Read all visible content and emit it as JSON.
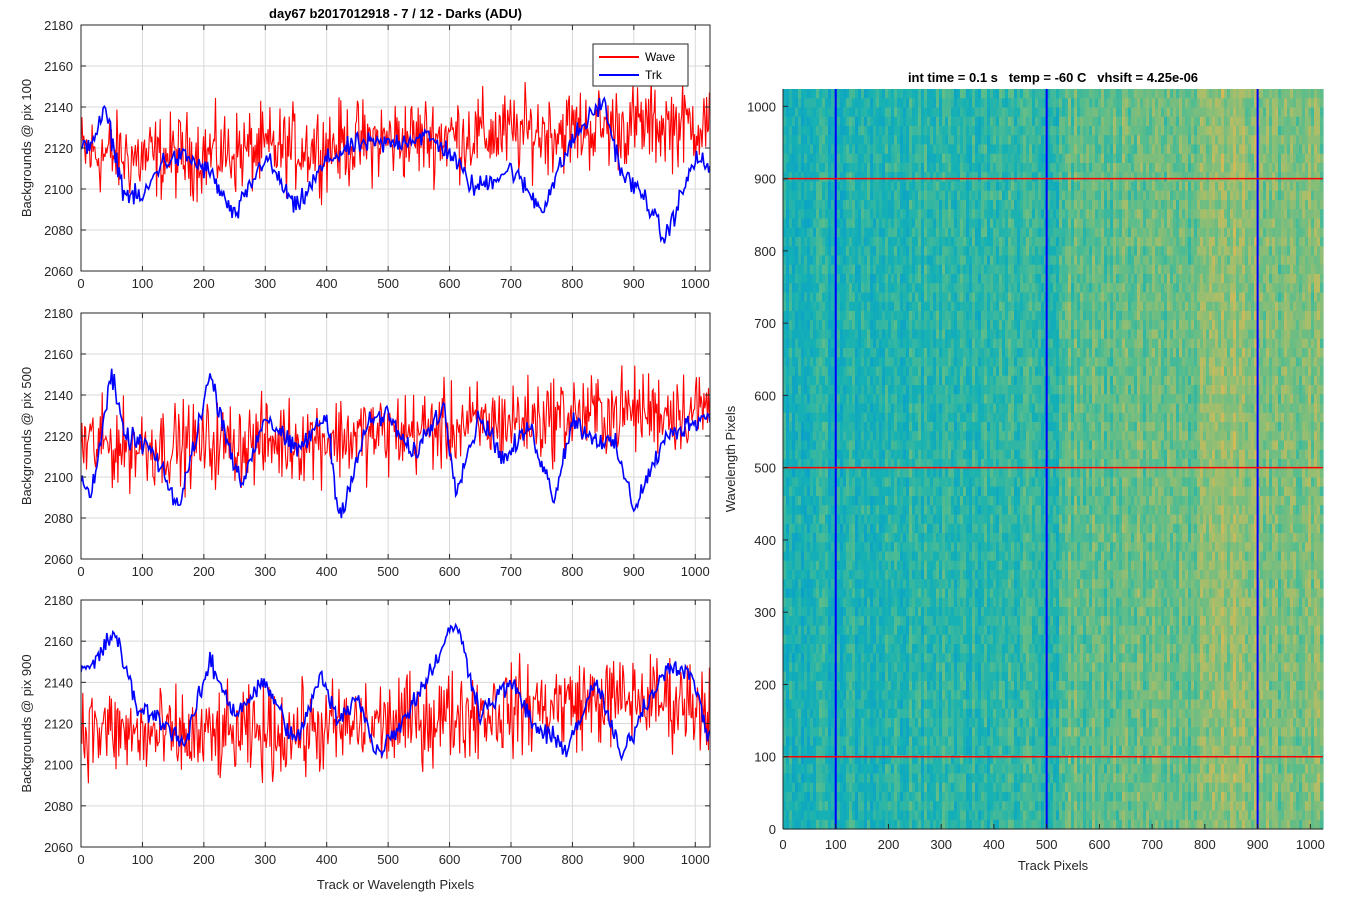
{
  "figure": {
    "colors": {
      "wave": "#ff0000",
      "trk": "#0000ff",
      "grid": "#d9d9d9",
      "axis": "#262626"
    }
  },
  "chart_data": [
    {
      "type": "line",
      "title": "day67 b2017012918 - 7 / 12 - Darks (ADU)",
      "xlabel": "",
      "ylabel": "Backgrounds @ pix 100",
      "xlim": [
        0,
        1024
      ],
      "ylim": [
        2060,
        2180
      ],
      "xticks": [
        0,
        100,
        200,
        300,
        400,
        500,
        600,
        700,
        800,
        900,
        1000
      ],
      "yticks": [
        2060,
        2080,
        2100,
        2120,
        2140,
        2160,
        2180
      ],
      "grid": true,
      "legend_position": "top-right",
      "series": [
        {
          "name": "Wave",
          "color": "#ff0000",
          "x": [
            0,
            100,
            200,
            300,
            400,
            500,
            600,
            700,
            800,
            900,
            1024
          ],
          "mean": [
            2118,
            2115,
            2117,
            2119,
            2121,
            2124,
            2126,
            2127,
            2129,
            2131,
            2132
          ],
          "noise": 14
        },
        {
          "name": "Trk",
          "color": "#0000ff",
          "x": [
            0,
            20,
            40,
            70,
            100,
            130,
            170,
            210,
            250,
            300,
            350,
            400,
            450,
            500,
            560,
            600,
            640,
            700,
            750,
            800,
            850,
            880,
            920,
            950,
            1000,
            1024
          ],
          "y": [
            2118,
            2125,
            2138,
            2098,
            2095,
            2113,
            2116,
            2108,
            2086,
            2116,
            2090,
            2114,
            2122,
            2122,
            2126,
            2118,
            2100,
            2110,
            2090,
            2124,
            2143,
            2108,
            2095,
            2075,
            2115,
            2110
          ]
        }
      ]
    },
    {
      "type": "line",
      "title": "",
      "xlabel": "",
      "ylabel": "Backgrounds @ pix 500",
      "xlim": [
        0,
        1024
      ],
      "ylim": [
        2060,
        2180
      ],
      "xticks": [
        0,
        100,
        200,
        300,
        400,
        500,
        600,
        700,
        800,
        900,
        1000
      ],
      "yticks": [
        2060,
        2080,
        2100,
        2120,
        2140,
        2160,
        2180
      ],
      "grid": true,
      "series": [
        {
          "name": "Wave",
          "color": "#ff0000",
          "x": [
            0,
            100,
            200,
            300,
            400,
            500,
            600,
            700,
            800,
            900,
            1024
          ],
          "mean": [
            2116,
            2115,
            2116,
            2117,
            2119,
            2121,
            2124,
            2127,
            2130,
            2132,
            2133
          ],
          "noise": 14
        },
        {
          "name": "Trk",
          "color": "#0000ff",
          "x": [
            0,
            15,
            50,
            70,
            110,
            160,
            210,
            260,
            300,
            350,
            400,
            420,
            470,
            500,
            540,
            590,
            610,
            650,
            690,
            730,
            770,
            800,
            830,
            870,
            900,
            950,
            1000,
            1024
          ],
          "y": [
            2100,
            2090,
            2150,
            2120,
            2115,
            2085,
            2150,
            2095,
            2130,
            2112,
            2130,
            2080,
            2128,
            2130,
            2110,
            2135,
            2095,
            2130,
            2108,
            2125,
            2090,
            2128,
            2120,
            2115,
            2085,
            2118,
            2128,
            2130
          ]
        }
      ]
    },
    {
      "type": "line",
      "title": "",
      "xlabel": "Track or Wavelength Pixels",
      "ylabel": "Backgrounds @ pix 900",
      "xlim": [
        0,
        1024
      ],
      "ylim": [
        2060,
        2180
      ],
      "xticks": [
        0,
        100,
        200,
        300,
        400,
        500,
        600,
        700,
        800,
        900,
        1000
      ],
      "yticks": [
        2060,
        2080,
        2100,
        2120,
        2140,
        2160,
        2180
      ],
      "grid": true,
      "series": [
        {
          "name": "Wave",
          "color": "#ff0000",
          "x": [
            0,
            100,
            200,
            300,
            400,
            500,
            600,
            700,
            800,
            900,
            1024
          ],
          "mean": [
            2118,
            2114,
            2113,
            2115,
            2117,
            2120,
            2124,
            2127,
            2130,
            2132,
            2130
          ],
          "noise": 15
        },
        {
          "name": "Trk",
          "color": "#0000ff",
          "x": [
            0,
            20,
            55,
            90,
            130,
            170,
            210,
            250,
            300,
            350,
            390,
            420,
            450,
            480,
            520,
            560,
            610,
            650,
            700,
            740,
            790,
            840,
            880,
            920,
            960,
            1000,
            1024
          ],
          "y": [
            2145,
            2148,
            2165,
            2128,
            2122,
            2110,
            2150,
            2125,
            2140,
            2110,
            2143,
            2120,
            2135,
            2105,
            2120,
            2140,
            2170,
            2125,
            2140,
            2118,
            2108,
            2140,
            2103,
            2130,
            2150,
            2140,
            2110
          ]
        }
      ]
    },
    {
      "type": "heatmap",
      "title": "int time = 0.1 s   temp = -60 C   vhsift = 4.25e-06",
      "xlabel": "Track Pixels",
      "ylabel": "Wavelength Pixels",
      "xlim": [
        0,
        1024
      ],
      "ylim": [
        0,
        1024
      ],
      "xticks": [
        0,
        100,
        200,
        300,
        400,
        500,
        600,
        700,
        800,
        900,
        1000
      ],
      "yticks": [
        0,
        100,
        200,
        300,
        400,
        500,
        600,
        700,
        800,
        900,
        1000
      ],
      "colormap": "parula",
      "vertical_lines": {
        "color": "#0000ff",
        "x": [
          100,
          500,
          900
        ]
      },
      "horizontal_lines": {
        "color": "#ff0000",
        "y": [
          100,
          500,
          900
        ]
      }
    }
  ]
}
